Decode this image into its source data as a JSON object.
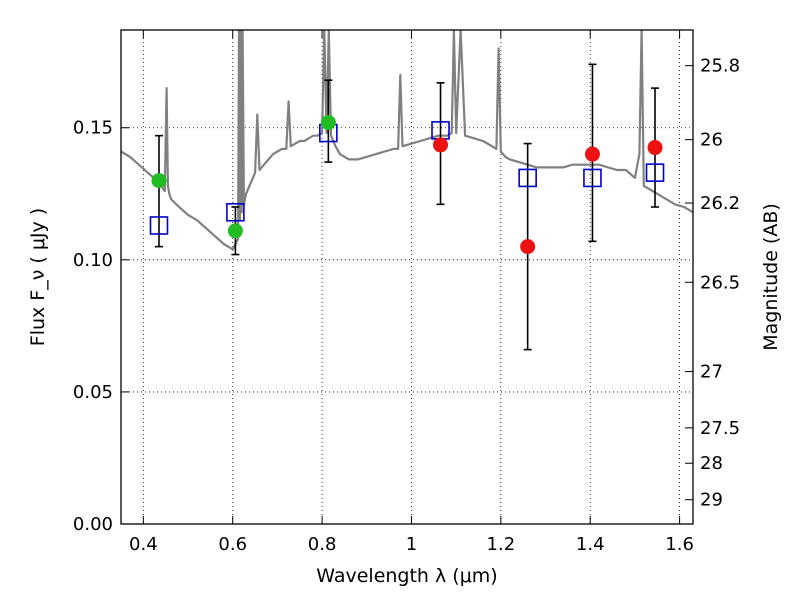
{
  "chart_data": {
    "type": "scatter",
    "title": "",
    "xlabel": "Wavelength  λ (μm)",
    "ylabel": "Flux  F_ν  ( μJy )",
    "ylabel_right": "Magnitude (AB)",
    "xlim": [
      0.35,
      1.63
    ],
    "ylim": [
      0.0,
      0.187
    ],
    "grid": true,
    "legend": "none",
    "x_ticks": [
      {
        "value": 0.4,
        "label": "0.4"
      },
      {
        "value": 0.6,
        "label": "0.6"
      },
      {
        "value": 0.8,
        "label": "0.8"
      },
      {
        "value": 1.0,
        "label": "1"
      },
      {
        "value": 1.2,
        "label": "1.2"
      },
      {
        "value": 1.4,
        "label": "1.4"
      },
      {
        "value": 1.6,
        "label": "1.6"
      }
    ],
    "y_ticks": [
      {
        "value": 0.0,
        "label": "0.00"
      },
      {
        "value": 0.05,
        "label": "0.05"
      },
      {
        "value": 0.1,
        "label": "0.10"
      },
      {
        "value": 0.15,
        "label": "0.15"
      }
    ],
    "right_ticks": [
      {
        "flux": 0.1735,
        "label": "25.8"
      },
      {
        "flux": 0.1455,
        "label": "26"
      },
      {
        "flux": 0.1215,
        "label": "26.2"
      },
      {
        "flux": 0.0915,
        "label": "26.5"
      },
      {
        "flux": 0.0577,
        "label": "27"
      },
      {
        "flux": 0.0364,
        "label": "27.5"
      },
      {
        "flux": 0.023,
        "label": "28"
      },
      {
        "flux": 0.0092,
        "label": "29"
      }
    ],
    "observed": [
      {
        "x": 0.435,
        "y": 0.13,
        "yerr_low": 0.105,
        "yerr_high": 0.147,
        "color": "#22bb22"
      },
      {
        "x": 0.606,
        "y": 0.111,
        "yerr_low": 0.102,
        "yerr_high": 0.12,
        "color": "#22bb22"
      },
      {
        "x": 0.814,
        "y": 0.152,
        "yerr_low": 0.137,
        "yerr_high": 0.168,
        "color": "#22bb22"
      },
      {
        "x": 1.065,
        "y": 0.1435,
        "yerr_low": 0.121,
        "yerr_high": 0.167,
        "color": "#ee1111"
      },
      {
        "x": 1.26,
        "y": 0.105,
        "yerr_low": 0.066,
        "yerr_high": 0.144,
        "color": "#ee1111"
      },
      {
        "x": 1.405,
        "y": 0.14,
        "yerr_low": 0.107,
        "yerr_high": 0.174,
        "color": "#ee1111"
      },
      {
        "x": 1.545,
        "y": 0.1425,
        "yerr_low": 0.12,
        "yerr_high": 0.165,
        "color": "#ee1111"
      }
    ],
    "model_photometry": [
      {
        "x": 0.435,
        "y": 0.113
      },
      {
        "x": 0.606,
        "y": 0.118
      },
      {
        "x": 0.814,
        "y": 0.148
      },
      {
        "x": 1.065,
        "y": 0.149
      },
      {
        "x": 1.26,
        "y": 0.131
      },
      {
        "x": 1.405,
        "y": 0.131
      },
      {
        "x": 1.545,
        "y": 0.133
      }
    ],
    "model_spectrum": {
      "color": "#808080",
      "x": [
        0.35,
        0.37,
        0.39,
        0.41,
        0.43,
        0.448,
        0.452,
        0.455,
        0.458,
        0.462,
        0.48,
        0.5,
        0.52,
        0.54,
        0.56,
        0.58,
        0.6,
        0.612,
        0.614,
        0.616,
        0.618,
        0.62,
        0.622,
        0.625,
        0.63,
        0.64,
        0.65,
        0.655,
        0.66,
        0.67,
        0.68,
        0.69,
        0.7,
        0.71,
        0.72,
        0.725,
        0.73,
        0.74,
        0.75,
        0.76,
        0.77,
        0.78,
        0.79,
        0.8,
        0.805,
        0.81,
        0.815,
        0.82,
        0.83,
        0.84,
        0.86,
        0.88,
        0.9,
        0.92,
        0.94,
        0.96,
        0.97,
        0.975,
        0.98,
        1.0,
        1.02,
        1.04,
        1.06,
        1.08,
        1.09,
        1.095,
        1.1,
        1.11,
        1.12,
        1.14,
        1.16,
        1.18,
        1.19,
        1.195,
        1.2,
        1.21,
        1.22,
        1.24,
        1.26,
        1.28,
        1.3,
        1.32,
        1.34,
        1.36,
        1.38,
        1.4,
        1.42,
        1.44,
        1.46,
        1.48,
        1.5,
        1.51,
        1.515,
        1.52,
        1.53,
        1.55,
        1.57,
        1.59,
        1.61,
        1.63
      ],
      "y": [
        0.141,
        0.139,
        0.136,
        0.133,
        0.13,
        0.126,
        0.165,
        0.128,
        0.125,
        0.123,
        0.12,
        0.117,
        0.115,
        0.112,
        0.109,
        0.106,
        0.104,
        0.108,
        0.187,
        0.115,
        0.187,
        0.118,
        0.187,
        0.121,
        0.125,
        0.129,
        0.133,
        0.155,
        0.134,
        0.136,
        0.138,
        0.14,
        0.141,
        0.142,
        0.142,
        0.16,
        0.143,
        0.144,
        0.145,
        0.145,
        0.146,
        0.147,
        0.147,
        0.148,
        0.187,
        0.148,
        0.187,
        0.147,
        0.143,
        0.14,
        0.138,
        0.138,
        0.139,
        0.14,
        0.141,
        0.142,
        0.142,
        0.17,
        0.143,
        0.144,
        0.145,
        0.146,
        0.147,
        0.147,
        0.148,
        0.187,
        0.148,
        0.187,
        0.147,
        0.146,
        0.145,
        0.143,
        0.142,
        0.18,
        0.141,
        0.139,
        0.138,
        0.137,
        0.136,
        0.135,
        0.135,
        0.135,
        0.135,
        0.136,
        0.136,
        0.136,
        0.136,
        0.135,
        0.134,
        0.134,
        0.131,
        0.14,
        0.187,
        0.128,
        0.127,
        0.125,
        0.123,
        0.121,
        0.12,
        0.118
      ]
    }
  }
}
